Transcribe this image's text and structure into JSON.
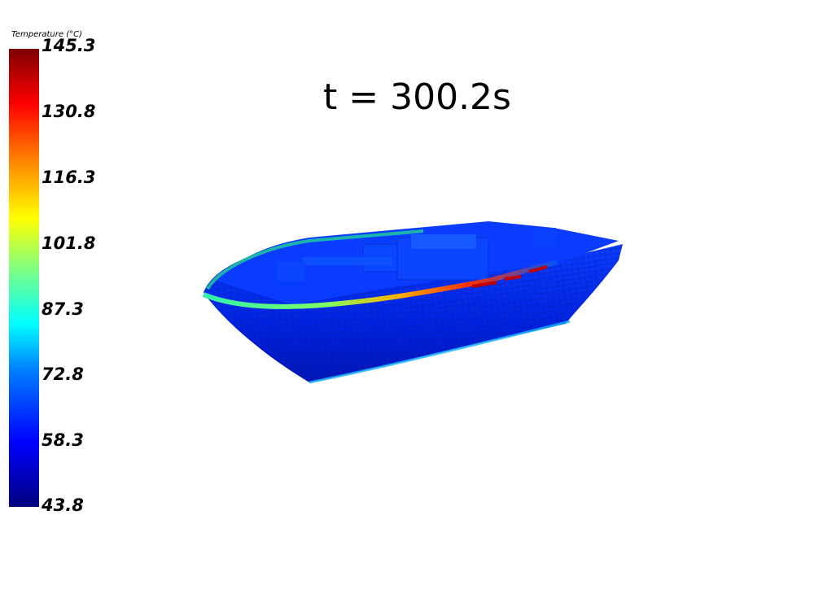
{
  "scalar_bar": {
    "title": "Temperature (°C)",
    "ticks": [
      "145.3",
      "130.8",
      "116.3",
      "101.8",
      "87.3",
      "72.8",
      "58.3",
      "43.8"
    ],
    "range": [
      43.8,
      145.3
    ],
    "colormap": "jet"
  },
  "time_label": "t = 300.2s",
  "colors": {
    "background": "#ffffff",
    "hull_base": "#0a2fff",
    "hull_dark": "#001a9e",
    "rim_hot": "#ff2000",
    "rim_warm": "#20e0c0"
  },
  "scene": {
    "object": "boat hull",
    "view": "3D isometric"
  }
}
